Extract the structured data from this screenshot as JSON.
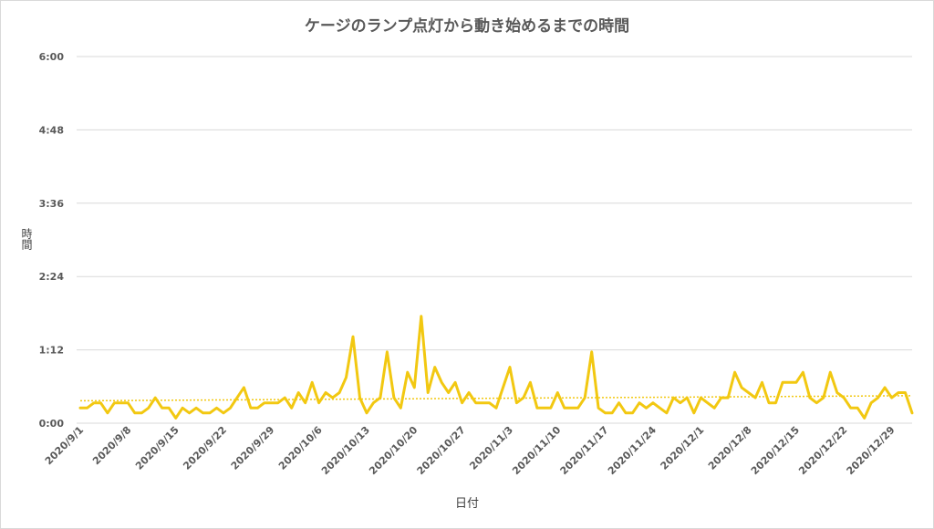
{
  "chart_data": {
    "type": "line",
    "title": "ケージのランプ点灯から動き始めるまでの時間",
    "xlabel": "日付",
    "ylabel": "時間",
    "y_unit": "minutes",
    "ylim": [
      0,
      360
    ],
    "y_ticks": [
      {
        "value": 0,
        "label": "0:00"
      },
      {
        "value": 72,
        "label": "1:12"
      },
      {
        "value": 144,
        "label": "2:24"
      },
      {
        "value": 216,
        "label": "3:36"
      },
      {
        "value": 288,
        "label": "4:48"
      },
      {
        "value": 360,
        "label": "6:00"
      }
    ],
    "x_start": "2020/9/1",
    "x_end": "2020/12/31",
    "x_tick_labels": [
      "2020/9/1",
      "2020/9/8",
      "2020/9/15",
      "2020/9/22",
      "2020/9/29",
      "2020/10/6",
      "2020/10/13",
      "2020/10/20",
      "2020/10/27",
      "2020/11/3",
      "2020/11/10",
      "2020/11/17",
      "2020/11/24",
      "2020/12/1",
      "2020/12/8",
      "2020/12/15",
      "2020/12/22",
      "2020/12/29"
    ],
    "grid": true,
    "legend": "none",
    "series": [
      {
        "color": "#f2c811",
        "values": [
          15,
          15,
          20,
          20,
          10,
          20,
          20,
          20,
          10,
          10,
          15,
          25,
          15,
          15,
          5,
          15,
          10,
          15,
          10,
          10,
          15,
          10,
          15,
          25,
          35,
          15,
          15,
          20,
          20,
          20,
          25,
          15,
          30,
          20,
          40,
          20,
          30,
          25,
          30,
          45,
          85,
          25,
          10,
          20,
          25,
          70,
          25,
          15,
          50,
          35,
          105,
          30,
          55,
          40,
          30,
          40,
          20,
          30,
          20,
          20,
          20,
          15,
          35,
          55,
          20,
          25,
          40,
          15,
          15,
          15,
          30,
          15,
          15,
          15,
          25,
          70,
          15,
          10,
          10,
          20,
          10,
          10,
          20,
          15,
          20,
          15,
          10,
          25,
          20,
          25,
          10,
          25,
          20,
          15,
          25,
          25,
          50,
          35,
          30,
          25,
          40,
          20,
          20,
          40,
          40,
          40,
          50,
          25,
          20,
          25,
          50,
          30,
          25,
          15,
          15,
          5,
          20,
          25,
          35,
          25,
          30,
          30,
          10
        ],
        "trendline": {
          "style": "dotted",
          "start": 22,
          "end": 27
        }
      }
    ]
  }
}
